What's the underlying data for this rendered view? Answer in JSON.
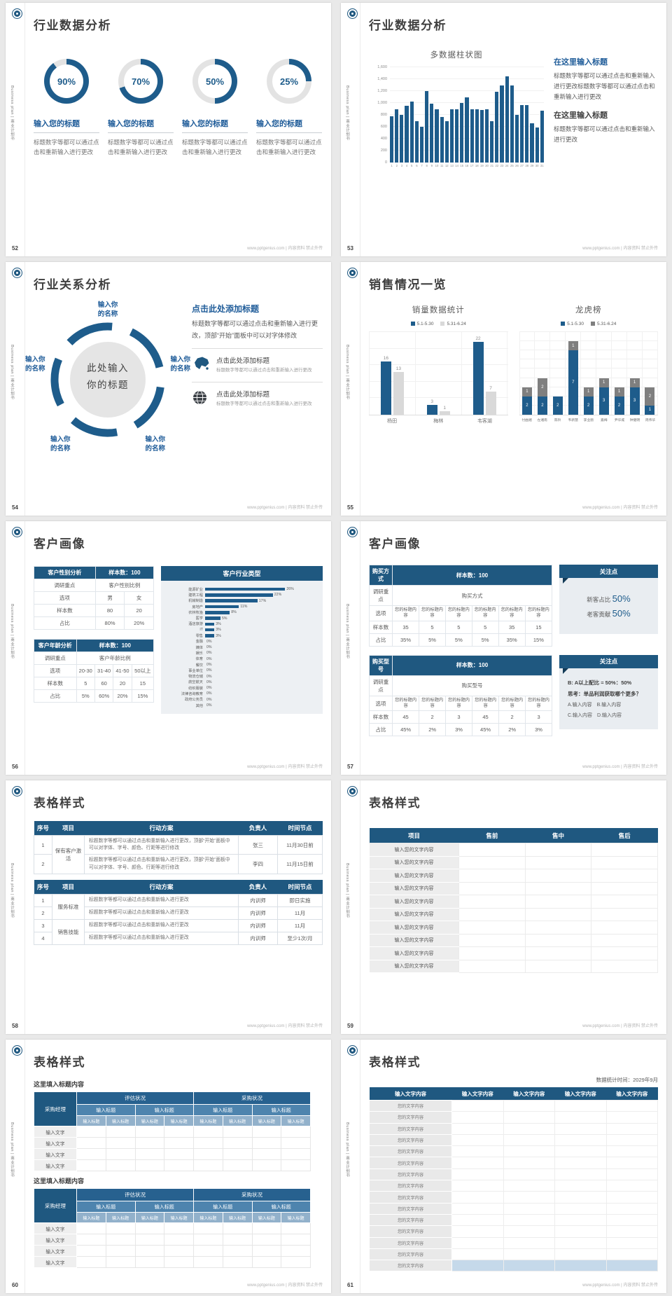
{
  "footer_text": "www.pptgenius.com | 内容资料 禁止外传",
  "sidebar_text": "Business plan | 商业计划书",
  "colors": {
    "primary": "#1E5C8B",
    "header_dark": "#1F5880",
    "accent_text": "#1F5C99",
    "track_gray": "#E3E3E3",
    "bar_gray": "#D9D9D9",
    "stack_gray": "#7F7F7F",
    "highlight_cell": "#C5D9EA"
  },
  "slides": [
    {
      "no": "52",
      "title": "行业数据分析",
      "type": "donuts",
      "donut_label": "输入您的标题",
      "donut_body": "标题数字等都可以通过点击和重新输入进行更改"
    },
    {
      "no": "53",
      "title": "行业数据分析",
      "type": "bar53",
      "chart": 1,
      "blocks": [
        {
          "heading": "在这里输入标题",
          "style": "blue",
          "body": "标题数字等都可以通过点击和重新输入进行更改标题数字等都可以通过点击和重新输入进行更改"
        },
        {
          "heading": "在这里输入标题",
          "style": "dark",
          "body": "标题数字等都可以通过点击和重新输入进行更改"
        }
      ]
    },
    {
      "no": "54",
      "title": "行业关系分析",
      "type": "relation",
      "center_lines": [
        "此处输入",
        "你的标题"
      ],
      "node_lines": [
        "输入你",
        "的名称"
      ],
      "heading": "点击此处添加标题",
      "paragraph": "标题数字等都可以通过点击和重新输入进行更改，顶部“开始”面板中可以对字体修改",
      "items": [
        {
          "icon": "china-map-icon",
          "title": "点击此处添加标题",
          "body": "标题数字等都可以通过点击和重新输入进行更改"
        },
        {
          "icon": "globe-icon",
          "title": "点击此处添加标题",
          "body": "标题数字等都可以通过点击和重新输入进行更改"
        }
      ]
    },
    {
      "no": "55",
      "title": "销售情况一览",
      "type": "sales",
      "charts": [
        2,
        3
      ]
    },
    {
      "no": "56",
      "title": "客户画像",
      "type": "profile56",
      "tables": [
        {
          "header": [
            "客户性别分析",
            "样本数：100"
          ],
          "sub": [
            "调研重点",
            "客户性别比例"
          ],
          "rows": [
            [
              "选项",
              "男",
              "女"
            ],
            [
              "样本数",
              "80",
              "20"
            ],
            [
              "占比",
              "80%",
              "20%"
            ]
          ]
        },
        {
          "header": [
            "客户年龄分析",
            "样本数：100"
          ],
          "sub": [
            "调研重点",
            "客户年龄比例"
          ],
          "rows": [
            [
              "选项",
              "20-30",
              "31-40",
              "41-50",
              "50以上"
            ],
            [
              "样本数",
              "5",
              "60",
              "20",
              "15"
            ],
            [
              "占比",
              "5%",
              "60%",
              "20%",
              "15%"
            ]
          ]
        }
      ],
      "industry_chart": 4
    },
    {
      "no": "57",
      "title": "客户画像",
      "type": "profile57",
      "groups": [
        {
          "table": {
            "header": [
              "购买方式",
              "样本数：100"
            ],
            "sub": [
              "调研重点",
              "购买方式"
            ],
            "rows": [
              [
                "选项",
                "您的标题内容",
                "您的标题内容",
                "您的标题内容",
                "您的标题内容",
                "您的标题内容",
                "您的标题内容"
              ],
              [
                "样本数",
                "35",
                "5",
                "5",
                "5",
                "35",
                "15"
              ],
              [
                "占比",
                "35%",
                "5%",
                "5%",
                "5%",
                "35%",
                "15%"
              ]
            ]
          },
          "callout": {
            "header": "关注点",
            "stat_lines": [
              {
                "text": "新客占比 ",
                "big": "50%"
              },
              {
                "text": "老客贡献 ",
                "big": "50%"
              }
            ]
          }
        },
        {
          "table": {
            "header": [
              "购买型号",
              "样本数：100"
            ],
            "sub": [
              "调研重点",
              "购买型号"
            ],
            "rows": [
              [
                "选项",
                "您的标题内容",
                "您的标题内容",
                "您的标题内容",
                "您的标题内容",
                "您的标题内容",
                "您的标题内容"
              ],
              [
                "样本数",
                "45",
                "2",
                "3",
                "45",
                "2",
                "3"
              ],
              [
                "占比",
                "45%",
                "2%",
                "3%",
                "45%",
                "2%",
                "3%"
              ]
            ]
          },
          "callout": {
            "header": "关注点",
            "text_lines": [
              "B: A以上配比 = 50%：50%",
              "思考：单品利润获取哪个更多？",
              "A.输入内容　B.输入内容",
              "C.输入内容　D.输入内容"
            ],
            "bold_count": 2
          }
        }
      ]
    },
    {
      "no": "58",
      "title": "表格样式",
      "type": "tables58",
      "headers": [
        "序号",
        "项目",
        "行动方案",
        "负责人",
        "时间节点"
      ],
      "tables": [
        {
          "rows": [
            {
              "no": "1",
              "project": "保有客户激活",
              "span": 2,
              "plan": "标题数字等都可以通过点击和重新输入进行更改，顶部“开始”面板中可以对字体、字号、颜色、行距等进行修改",
              "owner": "张三",
              "time": "11月30日前"
            },
            {
              "no": "2",
              "plan": "标题数字等都可以通过点击和重新输入进行更改，顶部“开始”面板中可以对字体、字号、颜色、行距等进行修改",
              "owner": "李四",
              "time": "11月15日前"
            }
          ]
        },
        {
          "rows": [
            {
              "no": "1",
              "project": "服务标准",
              "span": 2,
              "plan": "标题数字等都可以通过点击和重新输入进行更改",
              "owner": "内训师",
              "time": "即日实施"
            },
            {
              "no": "2",
              "plan": "标题数字等都可以通过点击和重新输入进行更改",
              "owner": "内训师",
              "time": "11月"
            },
            {
              "no": "3",
              "project": "销售技能",
              "span": 2,
              "plan": "标题数字等都可以通过点击和重新输入进行更改",
              "owner": "内训师",
              "time": "11月"
            },
            {
              "no": "4",
              "plan": "标题数字等都可以通过点击和重新输入进行更改",
              "owner": "内训师",
              "time": "至少1次/月"
            }
          ]
        }
      ]
    },
    {
      "no": "59",
      "title": "表格样式",
      "type": "table59",
      "headers": [
        "项目",
        "售前",
        "售中",
        "售后"
      ],
      "row_label": "输入您的文字内容",
      "row_count": 10
    },
    {
      "no": "60",
      "title": "表格样式",
      "type": "tables60",
      "section_label": "这里填入标题内容",
      "corner": "采购经理",
      "group_headers": [
        "评估状况",
        "采购状况"
      ],
      "mid_header": "输入标题",
      "sub_header": "输入标题",
      "row_label": "输入文字",
      "data_rows": 4,
      "sections": 2
    },
    {
      "no": "61",
      "title": "表格样式",
      "type": "table61",
      "note": "数据统计时间：2029年9月",
      "header_label": "输入文字内容",
      "header_cols": 5,
      "row_label": "您的文字内容",
      "row_count": 15
    }
  ],
  "chart_data": [
    {
      "type": "pie",
      "subtype": "donut",
      "values": [
        90,
        70,
        50,
        25
      ],
      "unit": "%"
    },
    {
      "type": "bar",
      "title": "多数据柱状图",
      "categories": [
        "1",
        "2",
        "3",
        "4",
        "5",
        "6",
        "7",
        "8",
        "9",
        "10",
        "11",
        "12",
        "13",
        "14",
        "15",
        "16",
        "17",
        "18",
        "19",
        "20",
        "21",
        "22",
        "23",
        "24",
        "25",
        "26",
        "27",
        "28",
        "29",
        "30",
        "31"
      ],
      "values": [
        780,
        900,
        800,
        950,
        1020,
        700,
        600,
        1200,
        990,
        890,
        770,
        690,
        890,
        890,
        1000,
        1100,
        900,
        900,
        880,
        900,
        700,
        1190,
        1300,
        1450,
        1300,
        800,
        960,
        970,
        660,
        590,
        870
      ],
      "ylim": [
        0,
        1600
      ],
      "ytick_labels": [
        "0",
        "200",
        "400",
        "600",
        "800",
        "1,000",
        "1,200",
        "1,400",
        "1,600"
      ],
      "grid": true,
      "legend_position": "none"
    },
    {
      "type": "bar",
      "title": "销量数据统计",
      "categories": [
        "杨田",
        "梅林",
        "韦客湖"
      ],
      "series": [
        {
          "name": "5.1-5.30",
          "values": [
            16,
            3,
            22
          ]
        },
        {
          "name": "5.31-6.24",
          "values": [
            13,
            1,
            7
          ]
        }
      ],
      "ylim": [
        0,
        25
      ],
      "grid": true,
      "legend_position": "top"
    },
    {
      "type": "bar",
      "stacked": true,
      "title": "龙虎榜",
      "categories": [
        "付曲湘",
        "左湘南",
        "陈铃",
        "韦新慧",
        "李业丽",
        "嘉梅",
        "尹华城",
        "钟健明",
        "周伟华"
      ],
      "series": [
        {
          "name": "5.1-5.30",
          "values": [
            2,
            2,
            2,
            7,
            2,
            3,
            2,
            3,
            1
          ]
        },
        {
          "name": "5.31-6.24",
          "values": [
            1,
            2,
            0,
            1,
            1,
            1,
            1,
            1,
            2
          ]
        }
      ],
      "ylim": [
        0,
        9
      ],
      "grid": true,
      "legend_position": "top"
    },
    {
      "type": "bar",
      "orientation": "horizontal",
      "title": "客户行业类型",
      "categories": [
        "能源矿业",
        "建筑工程",
        "机械制造",
        "房地产",
        "农林牧渔",
        "医学",
        "酒店旅游",
        "IT",
        "零售",
        "金融",
        "媒体",
        "娱乐",
        "体育",
        "餐饮",
        "事业单位",
        "物流仓储",
        "航空航天",
        "纺织服装",
        "法律咨询教育",
        "政府公务员",
        "其他"
      ],
      "values": [
        26,
        22,
        17,
        11,
        8,
        5,
        3,
        3,
        3,
        0,
        0,
        0,
        0,
        0,
        0,
        0,
        0,
        0,
        0,
        0,
        0
      ],
      "unit": "%"
    }
  ]
}
